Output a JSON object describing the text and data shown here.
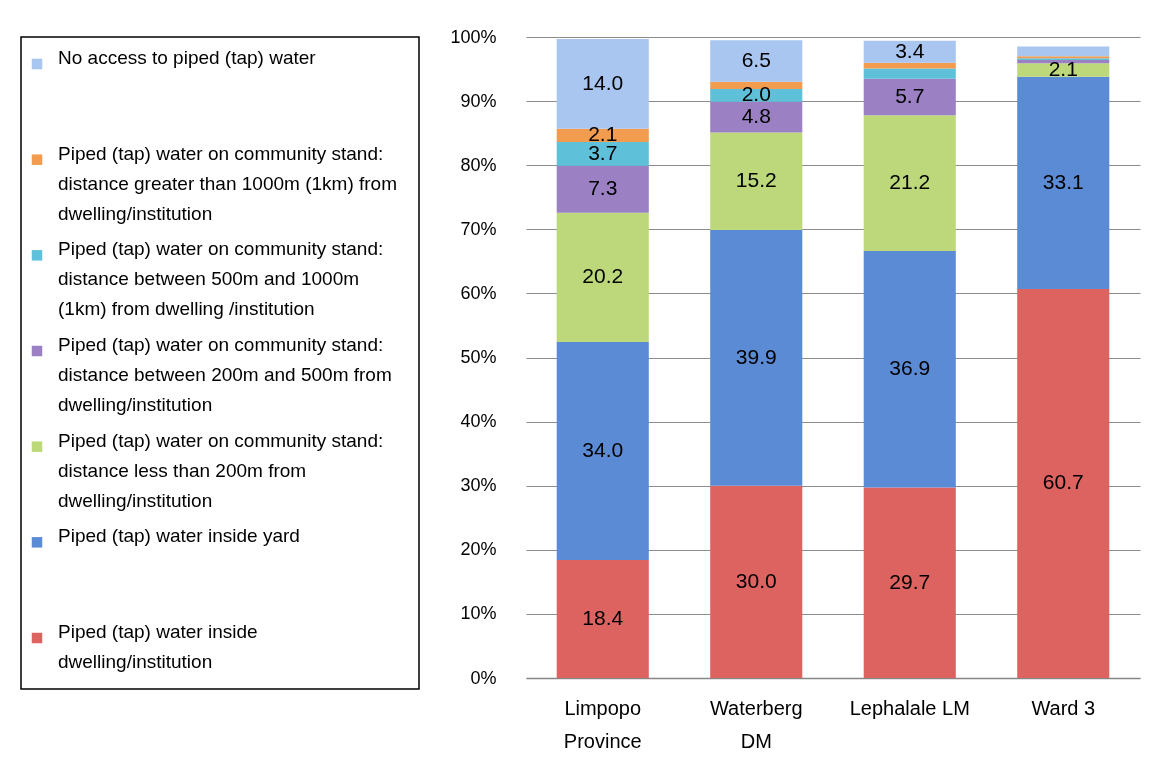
{
  "chart_data": {
    "type": "bar",
    "stacked": true,
    "legend": "left",
    "grid": "y",
    "categories": [
      "Limpopo Province",
      "Waterberg DM",
      "Lephalale LM",
      "Ward 3"
    ],
    "ylim": [
      0,
      100
    ],
    "yticks": [
      {
        "value": 0,
        "label": "0%"
      },
      {
        "value": 10,
        "label": "10%"
      },
      {
        "value": 20,
        "label": "20%"
      },
      {
        "value": 30,
        "label": "30%"
      },
      {
        "value": 40,
        "label": "40%"
      },
      {
        "value": 50,
        "label": "50%"
      },
      {
        "value": 60,
        "label": "60%"
      },
      {
        "value": 70,
        "label": "70%"
      },
      {
        "value": 80,
        "label": "80%"
      },
      {
        "value": 90,
        "label": "90%"
      },
      {
        "value": 100,
        "label": "100%"
      }
    ],
    "series": [
      {
        "name": "Piped (tap) water inside dwelling/institution",
        "color": "#dc6360",
        "values": [
          18.4,
          30.0,
          29.7,
          60.7
        ],
        "value_labels": [
          "18.4",
          "30.0",
          "29.7",
          "60.7"
        ]
      },
      {
        "name": "Piped (tap) water inside yard",
        "color": "#5b8bd5",
        "values": [
          34.0,
          39.9,
          36.9,
          33.1
        ],
        "value_labels": [
          "34.0",
          "39.9",
          "36.9",
          "33.1"
        ]
      },
      {
        "name": "Piped (tap) water on community stand: distance less than 200m from dwelling/institution",
        "color": "#bcd87a",
        "values": [
          20.2,
          15.2,
          21.2,
          2.1
        ],
        "value_labels": [
          "20.2",
          "15.2",
          "21.2",
          "2.1"
        ]
      },
      {
        "name": "Piped (tap) water on community stand: distance between 200m and 500m from dwelling/institution",
        "color": "#9b80c4",
        "values": [
          7.3,
          4.8,
          5.7,
          0.5
        ],
        "value_labels": [
          "7.3",
          "4.8",
          "5.7",
          null
        ]
      },
      {
        "name": "Piped (tap) water on community stand: distance between 500m and 1000m (1km) from dwelling /institution",
        "color": "#5fc0da",
        "values": [
          3.7,
          2.0,
          1.6,
          0.3
        ],
        "value_labels": [
          "3.7",
          "2.0",
          null,
          null
        ]
      },
      {
        "name": "Piped (tap) water on community stand: distance greater than 1000m (1km) from dwelling/institution",
        "color": "#f19c4f",
        "values": [
          2.1,
          1.1,
          0.9,
          0.3
        ],
        "value_labels": [
          "2.1",
          null,
          null,
          null
        ]
      },
      {
        "name": "No access to piped (tap) water",
        "color": "#a9c6f0",
        "values": [
          14.0,
          6.5,
          3.4,
          1.5
        ],
        "value_labels": [
          "14.0",
          "6.5",
          "3.4",
          null
        ]
      }
    ]
  }
}
